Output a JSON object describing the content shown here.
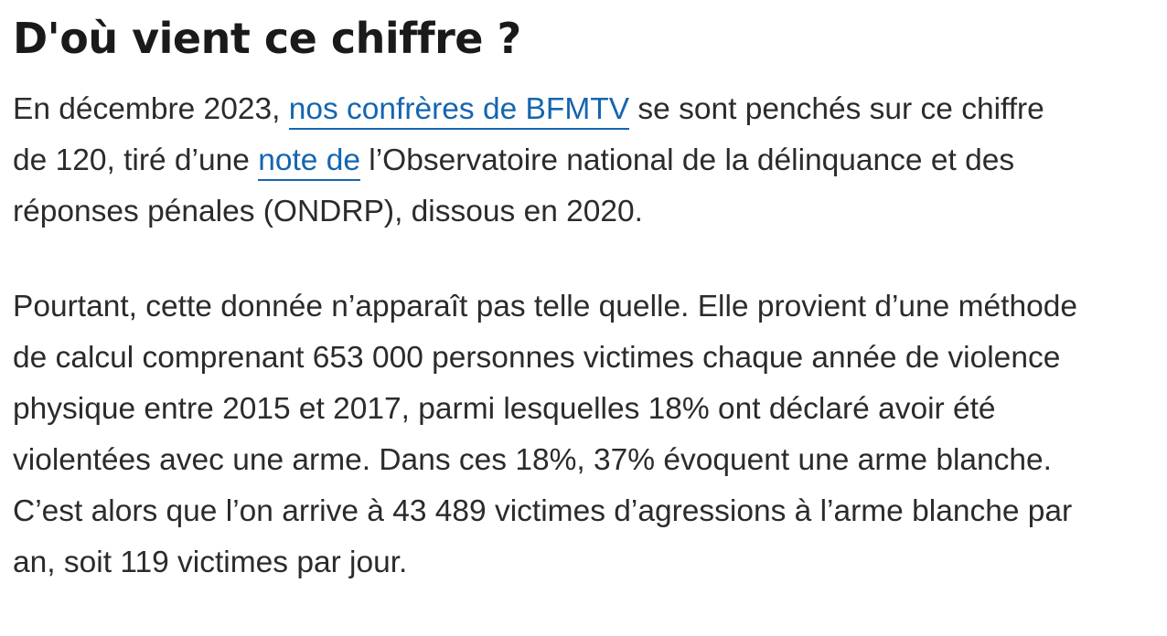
{
  "article": {
    "heading": "D'où vient ce chiffre ?",
    "paragraph1": {
      "line1_pre": "En décembre 2023, ",
      "link1": "nos confrères de BFMTV",
      "line1_post": " se sont penchés sur ce chiffre",
      "line2_pre": "de 120, tiré d’une ",
      "link2": "note de",
      "line2_post": " l’Observatoire national de la délinquance et des",
      "line3": "réponses pénales (ONDRP), dissous en 2020."
    },
    "paragraph2": {
      "lines": [
        "Pourtant, cette donnée n’apparaît pas telle quelle. Elle provient d’une méthode",
        "de calcul comprenant 653 000 personnes victimes chaque année de violence",
        "physique entre 2015 et 2017, parmi lesquelles 18% ont déclaré avoir été",
        "violentées avec une arme. Dans ces 18%, 37% évoquent une arme blanche.",
        "C’est alors que l’on arrive à 43 489 victimes d’agressions à l’arme blanche par",
        "an, soit 119 victimes par jour."
      ]
    }
  },
  "colors": {
    "link": "#1565b0",
    "text": "#2b2b2b",
    "heading": "#1a1a1a"
  }
}
